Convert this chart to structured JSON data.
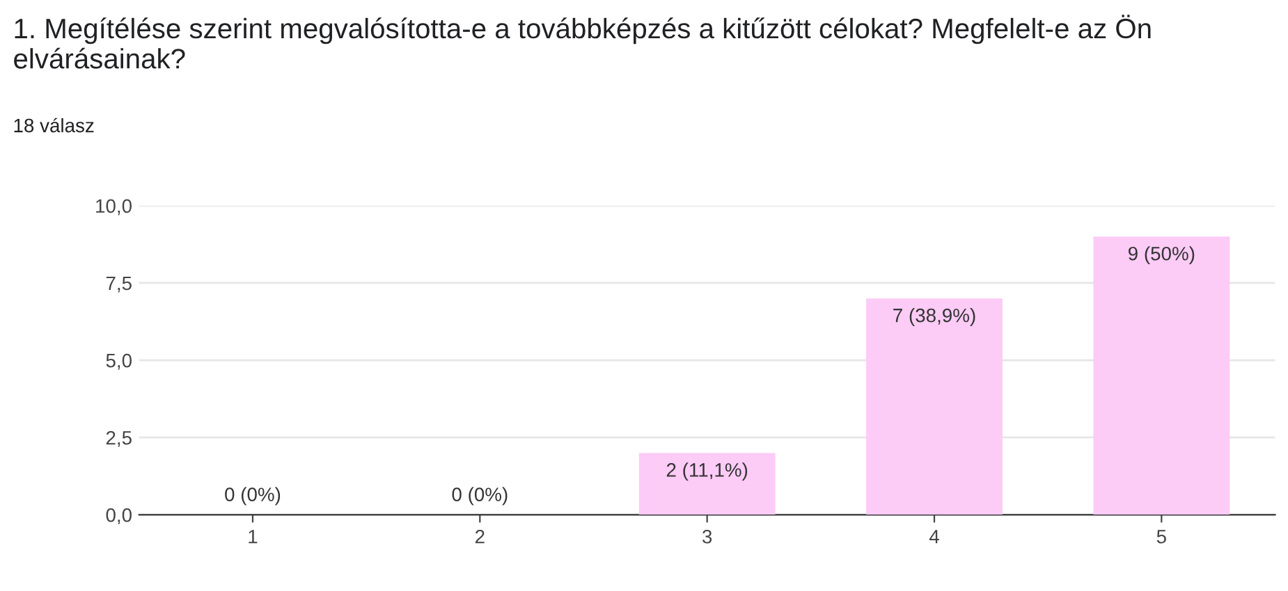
{
  "chart_data": {
    "type": "bar",
    "title": "1. Megítélése szerint megvalósította-e a továbbképzés a kitűzött célokat? Megfelelt-e az Ön elvárásainak?",
    "subtitle": "18 válasz",
    "categories": [
      "1",
      "2",
      "3",
      "4",
      "5"
    ],
    "values": [
      0,
      0,
      2,
      7,
      9
    ],
    "value_labels": [
      "0 (0%)",
      "0 (0%)",
      "2 (11,1%)",
      "7 (38,9%)",
      "9 (50%)"
    ],
    "color": "#fccbf6",
    "ylim": [
      0,
      10
    ],
    "yticks": [
      {
        "value": 0,
        "label": "0,0"
      },
      {
        "value": 2.5,
        "label": "2,5"
      },
      {
        "value": 5,
        "label": "5,0"
      },
      {
        "value": 7.5,
        "label": "7,5"
      },
      {
        "value": 10,
        "label": "10,0"
      }
    ],
    "grid": "y"
  }
}
